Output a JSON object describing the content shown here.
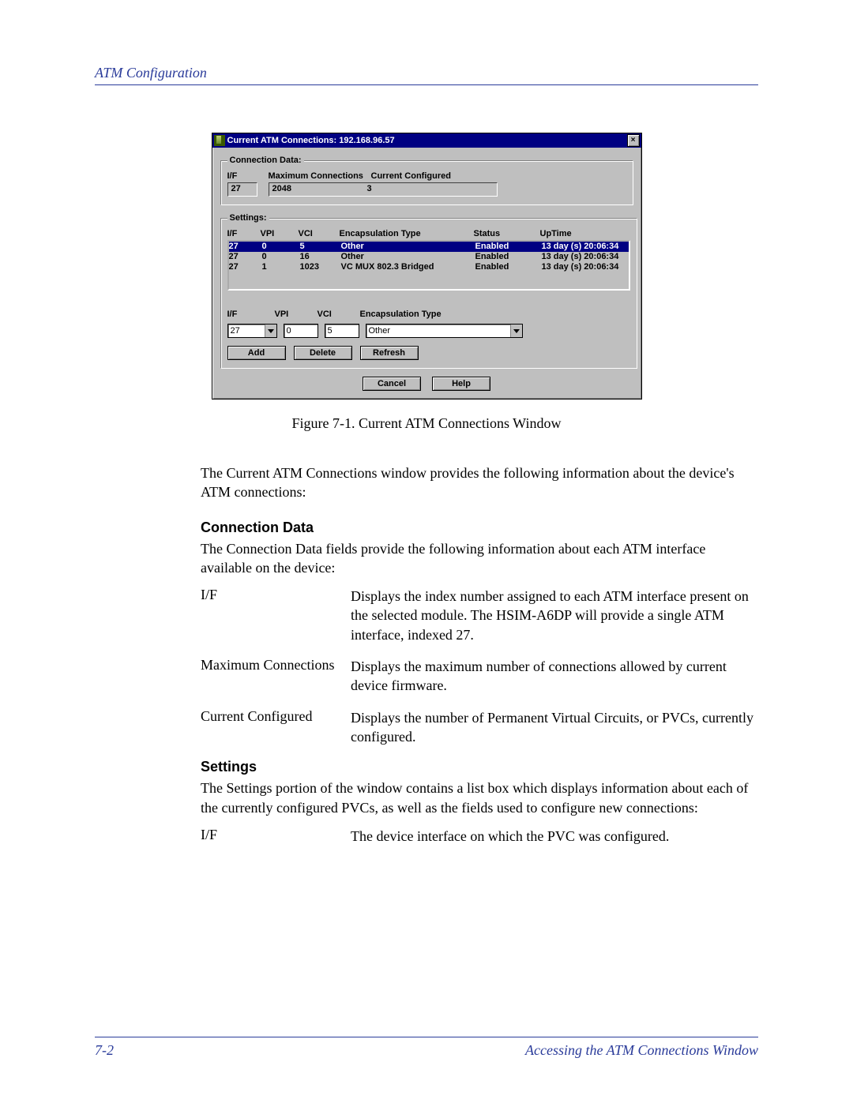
{
  "header": {
    "title": "ATM Configuration"
  },
  "window": {
    "title": "Current ATM Connections: 192.168.96.57",
    "close_glyph": "×",
    "conn_data": {
      "legend": "Connection Data:",
      "if_label": "I/F",
      "if_value": "27",
      "max_label": "Maximum Connections",
      "max_value": "2048",
      "cfg_label": "Current Configured",
      "cfg_value": "3"
    },
    "settings": {
      "legend": "Settings:",
      "cols": {
        "if": "I/F",
        "vpi": "VPI",
        "vci": "VCI",
        "enc": "Encapsulation Type",
        "status": "Status",
        "up": "UpTime"
      },
      "rows": [
        {
          "if": "27",
          "vpi": "0",
          "vci": "5",
          "enc": "Other",
          "status": "Enabled",
          "up": "13 day (s) 20:06:34",
          "selected": true
        },
        {
          "if": "27",
          "vpi": "0",
          "vci": "16",
          "enc": "Other",
          "status": "Enabled",
          "up": "13 day (s) 20:06:34",
          "selected": false
        },
        {
          "if": "27",
          "vpi": "1",
          "vci": "1023",
          "enc": "VC MUX 802.3 Bridged",
          "status": "Enabled",
          "up": "13 day (s) 20:06:34",
          "selected": false
        }
      ],
      "edit": {
        "if_label": "I/F",
        "vpi_label": "VPI",
        "vci_label": "VCI",
        "enc_label": "Encapsulation Type",
        "if_value": "27",
        "vpi_value": "0",
        "vci_value": "5",
        "enc_value": "Other"
      },
      "buttons": {
        "add": "Add",
        "delete": "Delete",
        "refresh": "Refresh"
      }
    },
    "dialog_buttons": {
      "cancel": "Cancel",
      "help": "Help"
    },
    "colors": {
      "titlebar_bg": "#000082",
      "titlebar_fg": "#ffffff",
      "face": "#bfbfbf",
      "text": "#000000",
      "selection_bg": "#000082",
      "selection_fg": "#ffffff",
      "input_bg": "#ffffff"
    }
  },
  "figure_caption": "Figure 7-1.  Current ATM Connections Window",
  "body": {
    "intro": "The Current ATM Connections window provides the following information about the device's ATM connections:",
    "conn_heading": "Connection Data",
    "conn_para": "The Connection Data fields provide the following information about each ATM interface available on the device:",
    "conn_defs": [
      {
        "term": "I/F",
        "desc": "Displays the index number assigned to each ATM interface present on the selected module. The HSIM-A6DP will provide a single ATM interface, indexed 27."
      },
      {
        "term": "Maximum Connections",
        "desc": "Displays the maximum number of connections allowed by current device firmware."
      },
      {
        "term": "Current Configured",
        "desc": "Displays the number of Permanent Virtual Circuits, or PVCs, currently configured."
      }
    ],
    "settings_heading": "Settings",
    "settings_para": "The Settings portion of the window contains a list box which displays information about each of the currently configured PVCs, as well as the fields used to configure new connections:",
    "settings_defs": [
      {
        "term": "I/F",
        "desc": "The device interface on which the PVC was configured."
      }
    ]
  },
  "footer": {
    "page": "7-2",
    "section": "Accessing the ATM Connections Window"
  },
  "doc_colors": {
    "accent": "#2a3b9a",
    "text": "#000000"
  }
}
